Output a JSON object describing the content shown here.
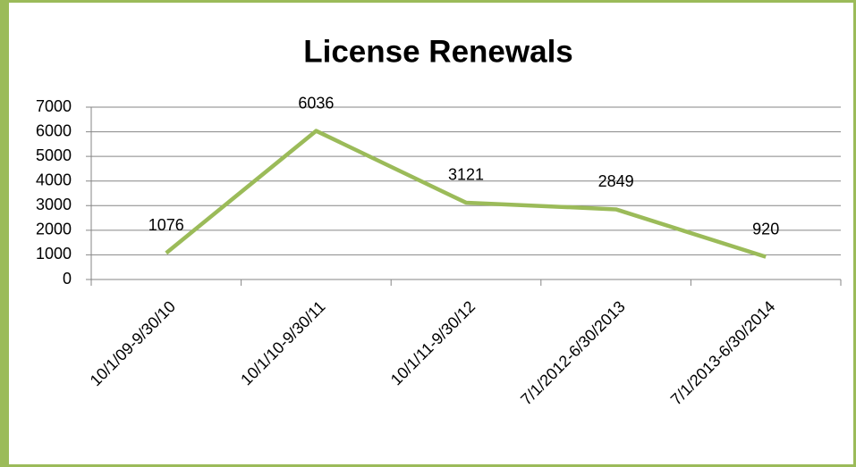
{
  "chart_data": {
    "type": "line",
    "title": "License Renewals",
    "categories": [
      "10/1/09-9/30/10",
      "10/1/10-9/30/11",
      "10/1/11-9/30/12",
      "7/1/2012-6/30/2013",
      "7/1/2013-6/30/2014"
    ],
    "values": [
      1076,
      6036,
      3121,
      2849,
      920
    ],
    "color": "#9bbb59",
    "ylim": [
      0,
      7000
    ],
    "yticks": [
      0,
      1000,
      2000,
      3000,
      4000,
      5000,
      6000,
      7000
    ],
    "grid": true
  }
}
